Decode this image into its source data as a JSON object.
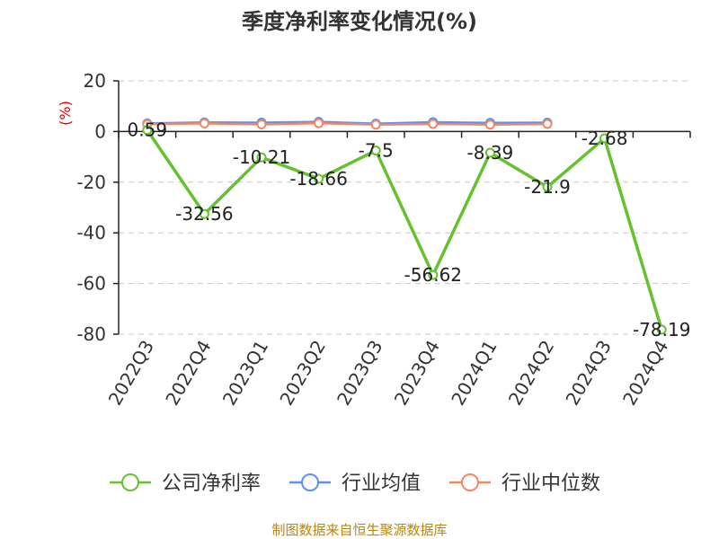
{
  "chart_data": {
    "type": "line",
    "title": "季度净利率变化情况(%)",
    "ylabel": "(%)",
    "xlabel": "",
    "ylim": [
      -80,
      20
    ],
    "yticks": [
      20,
      0,
      -20,
      -40,
      -60,
      -80
    ],
    "ytick_labels": [
      "20",
      "0",
      "-20",
      "-40",
      "-60",
      "-80"
    ],
    "categories": [
      "2022Q3",
      "2022Q4",
      "2023Q1",
      "2023Q2",
      "2023Q3",
      "2023Q4",
      "2024Q1",
      "2024Q2",
      "2024Q3",
      "2024Q4"
    ],
    "grid": true,
    "legend_position": "bottom",
    "series": [
      {
        "name": "公司净利率",
        "color": "#66c12e",
        "values": [
          0.59,
          -32.56,
          -10.21,
          -18.66,
          -7.5,
          -56.62,
          -8.39,
          -21.9,
          -2.68,
          -78.19
        ],
        "labels": [
          "0.59",
          "-32.56",
          "-10.21",
          "-18.66",
          "-7.5",
          "-56.62",
          "-8.39",
          "-21.9",
          "-2.68",
          "-78.19"
        ]
      },
      {
        "name": "行业均值",
        "color": "#5b8ff9",
        "values": [
          3.2,
          3.6,
          3.5,
          3.8,
          3.1,
          3.7,
          3.4,
          3.5,
          null,
          null
        ]
      },
      {
        "name": "行业中位数",
        "color": "#f4875f",
        "values": [
          2.9,
          3.2,
          2.8,
          3.3,
          2.7,
          3.0,
          2.7,
          3.0,
          null,
          null
        ]
      }
    ]
  },
  "footer": "制图数据来自恒生聚源数据库"
}
